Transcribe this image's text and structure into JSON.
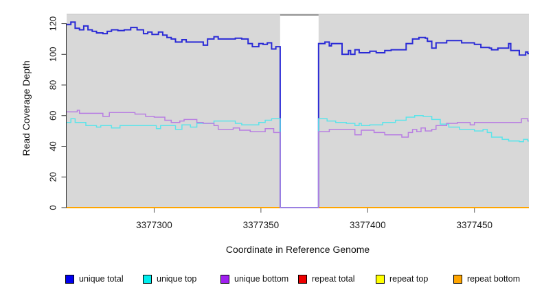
{
  "chart_data": {
    "type": "line",
    "subtype": "step-coverage-plot",
    "title": "",
    "xlabel": "Coordinate in Reference Genome",
    "ylabel": "Read Coverage Depth",
    "xlim": [
      3377259,
      3377475.5
    ],
    "ylim": [
      0,
      126.5
    ],
    "x_ticks": [
      3377300,
      3377350,
      3377400,
      3377450
    ],
    "y_ticks": [
      0,
      20,
      40,
      60,
      80,
      100,
      120
    ],
    "grid": false,
    "plot_background": "#d8d8d8",
    "masked_region": {
      "start": 3377359,
      "end": 3377377,
      "fill": "#ffffff",
      "top_border": "#8c8c8c"
    },
    "legend_position": "bottom",
    "draw_order": [
      3,
      4,
      5,
      0,
      1,
      2
    ],
    "series": [
      {
        "name": "unique total",
        "color": "#2a2ad6",
        "legend_color": "#0000ee",
        "line_width": 2,
        "points": [
          [
            3377259,
            119.5
          ],
          [
            3377261,
            121
          ],
          [
            3377263,
            117
          ],
          [
            3377265,
            116
          ],
          [
            3377267,
            118.5
          ],
          [
            3377269,
            116
          ],
          [
            3377271,
            115
          ],
          [
            3377273,
            114
          ],
          [
            3377276,
            113.5
          ],
          [
            3377278,
            115
          ],
          [
            3377280,
            116
          ],
          [
            3377283,
            115.5
          ],
          [
            3377286,
            116
          ],
          [
            3377289,
            117.5
          ],
          [
            3377292,
            116
          ],
          [
            3377295,
            113.5
          ],
          [
            3377297,
            114.5
          ],
          [
            3377299,
            113
          ],
          [
            3377302,
            114.5
          ],
          [
            3377304,
            112.5
          ],
          [
            3377306,
            111
          ],
          [
            3377308,
            110
          ],
          [
            3377310,
            108
          ],
          [
            3377313,
            109.5
          ],
          [
            3377315,
            108
          ],
          [
            3377323,
            106
          ],
          [
            3377325,
            110
          ],
          [
            3377328,
            111.5
          ],
          [
            3377330,
            110
          ],
          [
            3377338,
            110.5
          ],
          [
            3377341,
            110
          ],
          [
            3377344,
            107
          ],
          [
            3377346,
            105
          ],
          [
            3377349,
            107
          ],
          [
            3377351,
            106.5
          ],
          [
            3377353,
            107.5
          ],
          [
            3377355,
            103.5
          ],
          [
            3377357,
            105
          ],
          [
            3377359,
            0
          ],
          [
            3377377,
            107
          ],
          [
            3377380,
            108
          ],
          [
            3377382,
            105.5
          ],
          [
            3377383,
            107
          ],
          [
            3377388,
            100
          ],
          [
            3377391,
            102.5
          ],
          [
            3377392,
            100
          ],
          [
            3377394,
            103
          ],
          [
            3377396,
            101
          ],
          [
            3377401,
            102
          ],
          [
            3377404,
            101
          ],
          [
            3377408,
            102.5
          ],
          [
            3377411,
            103
          ],
          [
            3377418,
            107
          ],
          [
            3377421,
            110
          ],
          [
            3377424,
            111
          ],
          [
            3377427,
            110.5
          ],
          [
            3377428,
            108.5
          ],
          [
            3377430,
            104
          ],
          [
            3377432,
            107.5
          ],
          [
            3377437,
            109
          ],
          [
            3377444,
            107.5
          ],
          [
            3377450,
            106.5
          ],
          [
            3377453,
            104.5
          ],
          [
            3377457,
            104
          ],
          [
            3377458,
            103
          ],
          [
            3377461,
            104
          ],
          [
            3377466,
            107
          ],
          [
            3377467,
            102.5
          ],
          [
            3377471,
            99.5
          ],
          [
            3377474,
            101.5
          ],
          [
            3377475,
            100.5
          ]
        ]
      },
      {
        "name": "unique top",
        "color": "#5ce4ea",
        "legend_color": "#00eeee",
        "line_width": 1.5,
        "points": [
          [
            3377259,
            55.5
          ],
          [
            3377261,
            58
          ],
          [
            3377263,
            55.5
          ],
          [
            3377268,
            53.5
          ],
          [
            3377273,
            52.5
          ],
          [
            3377275,
            53.5
          ],
          [
            3377280,
            52
          ],
          [
            3377284,
            53.5
          ],
          [
            3377301,
            51.5
          ],
          [
            3377303,
            53.5
          ],
          [
            3377310,
            51
          ],
          [
            3377313,
            54
          ],
          [
            3377317,
            52.5
          ],
          [
            3377320,
            55
          ],
          [
            3377328,
            56.5
          ],
          [
            3377338,
            55
          ],
          [
            3377341,
            54
          ],
          [
            3377349,
            55.5
          ],
          [
            3377352,
            57
          ],
          [
            3377355,
            58
          ],
          [
            3377359,
            0
          ],
          [
            3377377,
            58
          ],
          [
            3377381,
            56.5
          ],
          [
            3377385,
            55.5
          ],
          [
            3377390,
            55
          ],
          [
            3377394,
            53.5
          ],
          [
            3377396,
            55
          ],
          [
            3377397,
            53.5
          ],
          [
            3377401,
            54
          ],
          [
            3377407,
            55.5
          ],
          [
            3377413,
            57
          ],
          [
            3377418,
            59
          ],
          [
            3377422,
            60
          ],
          [
            3377426,
            59.5
          ],
          [
            3377430,
            57.5
          ],
          [
            3377434,
            54.5
          ],
          [
            3377438,
            52.5
          ],
          [
            3377443,
            51
          ],
          [
            3377450,
            50
          ],
          [
            3377454,
            51
          ],
          [
            3377456,
            49
          ],
          [
            3377458,
            46
          ],
          [
            3377463,
            44.5
          ],
          [
            3377466,
            43.5
          ],
          [
            3377471,
            43
          ],
          [
            3377473,
            44.5
          ],
          [
            3377475,
            43.5
          ]
        ]
      },
      {
        "name": "unique bottom",
        "color": "#b87ee2",
        "legend_color": "#a020f0",
        "line_width": 1.5,
        "points": [
          [
            3377259,
            62.5
          ],
          [
            3377264,
            63.5
          ],
          [
            3377265,
            61.5
          ],
          [
            3377276,
            59.5
          ],
          [
            3377279,
            62
          ],
          [
            3377289,
            62
          ],
          [
            3377291,
            61
          ],
          [
            3377296,
            59.5
          ],
          [
            3377300,
            59
          ],
          [
            3377305,
            57
          ],
          [
            3377308,
            55.5
          ],
          [
            3377312,
            56.5
          ],
          [
            3377314,
            57.5
          ],
          [
            3377320,
            55.5
          ],
          [
            3377323,
            55
          ],
          [
            3377328,
            53.5
          ],
          [
            3377330,
            51
          ],
          [
            3377337,
            52
          ],
          [
            3377340,
            50.5
          ],
          [
            3377345,
            49.5
          ],
          [
            3377352,
            51.5
          ],
          [
            3377356,
            49
          ],
          [
            3377359,
            0
          ],
          [
            3377377,
            49.5
          ],
          [
            3377382,
            51
          ],
          [
            3377394,
            47.5
          ],
          [
            3377397,
            50.5
          ],
          [
            3377403,
            49
          ],
          [
            3377408,
            47.5
          ],
          [
            3377416,
            46
          ],
          [
            3377419,
            49
          ],
          [
            3377421,
            51
          ],
          [
            3377423,
            49.5
          ],
          [
            3377425,
            52
          ],
          [
            3377427,
            50
          ],
          [
            3377430,
            51
          ],
          [
            3377432,
            53.5
          ],
          [
            3377437,
            55
          ],
          [
            3377442,
            55.5
          ],
          [
            3377448,
            54
          ],
          [
            3377450,
            55.5
          ],
          [
            3377472,
            58
          ],
          [
            3377475,
            56.5
          ]
        ]
      },
      {
        "name": "repeat total",
        "color": "#dd0000",
        "legend_color": "#ee0000",
        "line_width": 1.5,
        "points": [
          [
            3377259,
            0
          ],
          [
            3377475.5,
            0
          ]
        ]
      },
      {
        "name": "repeat top",
        "color": "#ffff00",
        "legend_color": "#ffff00",
        "line_width": 1.5,
        "points": [
          [
            3377259,
            0
          ],
          [
            3377475.5,
            0
          ]
        ]
      },
      {
        "name": "repeat bottom",
        "color": "#ffa500",
        "legend_color": "#ffa500",
        "line_width": 2,
        "points": [
          [
            3377259,
            0
          ],
          [
            3377475.5,
            0
          ]
        ]
      }
    ]
  }
}
